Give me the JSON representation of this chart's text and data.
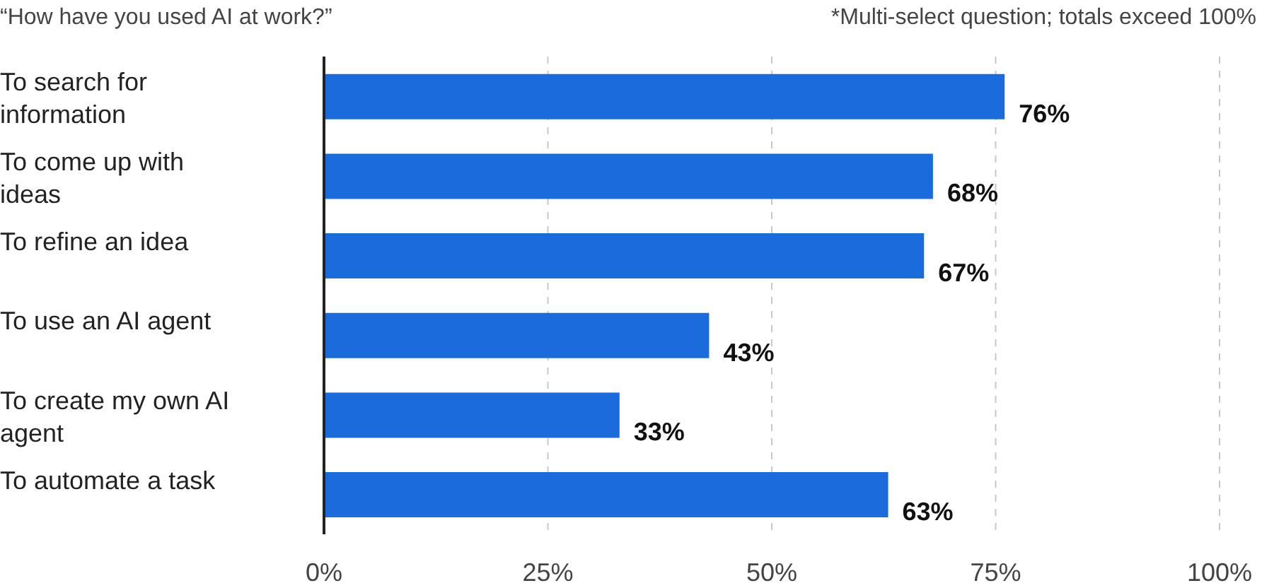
{
  "chart_data": {
    "type": "bar",
    "orientation": "horizontal",
    "title": "“How have you used AI at work?”",
    "annotations": [
      "*Multi-select question; totals exceed 100%"
    ],
    "categories": [
      "To search for information",
      "To come up with ideas",
      "To refine an idea",
      "To use an AI agent",
      "To create my own AI agent",
      "To automate a task"
    ],
    "values": [
      76,
      68,
      67,
      43,
      33,
      63
    ],
    "value_labels": [
      "76%",
      "68%",
      "67%",
      "43%",
      "33%",
      "63%"
    ],
    "color": "#1a6bdc",
    "xlim": [
      0,
      100
    ],
    "xticks": [
      {
        "value": 0,
        "label": "0%"
      },
      {
        "value": 25,
        "label": "25%"
      },
      {
        "value": 50,
        "label": "50%"
      },
      {
        "value": 75,
        "label": "75%"
      },
      {
        "value": 100,
        "label": "100%"
      }
    ],
    "grid": "x",
    "legend": false
  }
}
